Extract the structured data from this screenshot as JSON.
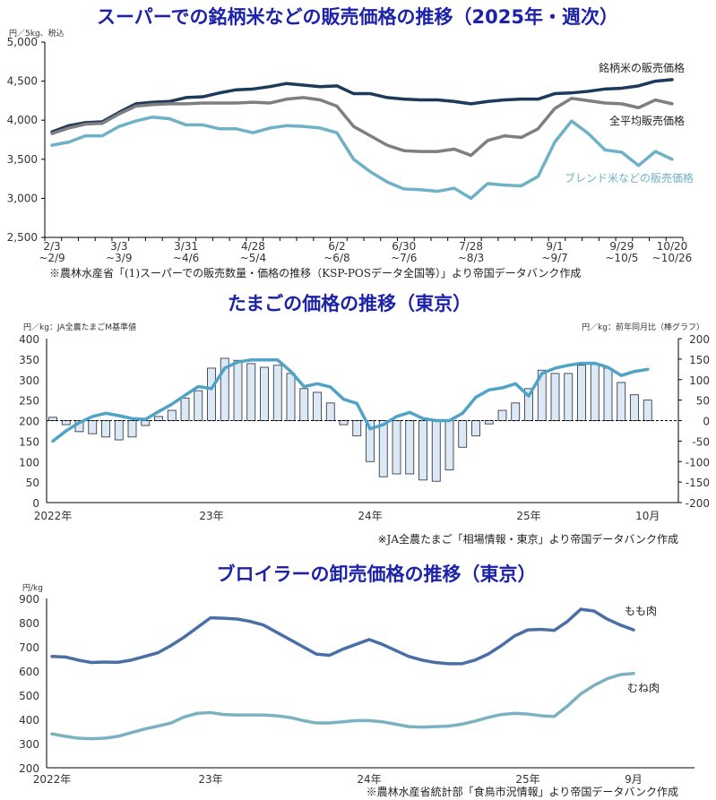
{
  "chart_data": [
    {
      "type": "line",
      "title": "スーパーでの銘柄米などの販売価格の推移（2025年・週次）",
      "ylabel": "円／5kg、税込",
      "ylim": [
        2500,
        5000
      ],
      "yticks": [
        "5,000",
        "4,500",
        "4,000",
        "3,500",
        "3,000",
        "2,500"
      ],
      "xtick_labels": [
        {
          "index": 0,
          "lines": [
            "2/3",
            "~2/9"
          ]
        },
        {
          "index": 4,
          "lines": [
            "3/3",
            "~3/9"
          ]
        },
        {
          "index": 8,
          "lines": [
            "3/31",
            "~4/6"
          ]
        },
        {
          "index": 12,
          "lines": [
            "4/28",
            "~5/4"
          ]
        },
        {
          "index": 17,
          "lines": [
            "6/2",
            "~6/8"
          ]
        },
        {
          "index": 21,
          "lines": [
            "6/30",
            "~7/6"
          ]
        },
        {
          "index": 25,
          "lines": [
            "7/28",
            "~8/3"
          ]
        },
        {
          "index": 30,
          "lines": [
            "9/1",
            "~9/7"
          ]
        },
        {
          "index": 34,
          "lines": [
            "9/29",
            "~10/5"
          ]
        },
        {
          "index": 37,
          "lines": [
            "10/20",
            "~10/26"
          ]
        }
      ],
      "weeks": 38,
      "series": [
        {
          "name": "銘柄米の販売価格",
          "color": "#1b3a5c",
          "values": [
            3850,
            3930,
            3970,
            3980,
            4100,
            4210,
            4230,
            4240,
            4290,
            4300,
            4350,
            4390,
            4400,
            4430,
            4470,
            4450,
            4430,
            4440,
            4340,
            4340,
            4290,
            4270,
            4260,
            4260,
            4240,
            4210,
            4240,
            4260,
            4270,
            4270,
            4340,
            4350,
            4370,
            4400,
            4410,
            4440,
            4500,
            4520
          ]
        },
        {
          "name": "全平均販売価格",
          "color": "#7f7f7f",
          "values": [
            3830,
            3900,
            3950,
            3960,
            4080,
            4180,
            4200,
            4210,
            4210,
            4220,
            4220,
            4220,
            4230,
            4220,
            4270,
            4290,
            4260,
            4180,
            3920,
            3800,
            3680,
            3610,
            3600,
            3600,
            3630,
            3550,
            3740,
            3800,
            3780,
            3890,
            4150,
            4280,
            4250,
            4220,
            4210,
            4160,
            4260,
            4210
          ]
        },
        {
          "name": "ブレンド米などの販売価格",
          "color": "#6fb1c6",
          "values": [
            3680,
            3720,
            3800,
            3800,
            3920,
            3990,
            4040,
            4020,
            3940,
            3940,
            3890,
            3890,
            3840,
            3900,
            3930,
            3920,
            3900,
            3840,
            3500,
            3340,
            3210,
            3120,
            3110,
            3090,
            3130,
            3000,
            3190,
            3170,
            3160,
            3280,
            3720,
            3990,
            3830,
            3620,
            3590,
            3420,
            3600,
            3500
          ]
        }
      ],
      "source": "※農林水産省「(1)スーパーでの販売数量・価格の推移（KSP-POSデータ全国等）」より帝国データバンク作成"
    },
    {
      "type": "bar+line",
      "title": "たまごの価格の推移（東京）",
      "ylabel_left": "円／kg：JA全農たまごM基準値",
      "ylabel_right": "円／kg：前年同月比（棒グラフ）",
      "ylim_left": [
        0,
        400
      ],
      "ylim_right": [
        -200,
        200
      ],
      "yticks_left": [
        "400",
        "350",
        "300",
        "250",
        "200",
        "150",
        "100",
        "50",
        "0"
      ],
      "yticks_right": [
        "200",
        "150",
        "100",
        "50",
        "0",
        "-50",
        "-100",
        "-150",
        "-200"
      ],
      "xtick_labels": [
        {
          "index": 0,
          "label": "2022年"
        },
        {
          "index": 12,
          "label": "23年"
        },
        {
          "index": 24,
          "label": "24年"
        },
        {
          "index": 36,
          "label": "25年"
        },
        {
          "index": 45,
          "label": "10月"
        }
      ],
      "line": {
        "color": "#4fa3c7",
        "values": [
          150,
          175,
          195,
          210,
          218,
          212,
          205,
          203,
          222,
          240,
          262,
          283,
          278,
          328,
          343,
          348,
          348,
          348,
          320,
          283,
          290,
          282,
          252,
          242,
          180,
          190,
          210,
          220,
          205,
          200,
          200,
          218,
          257,
          275,
          280,
          290,
          260,
          315,
          328,
          335,
          340,
          340,
          330,
          310,
          320,
          325
        ]
      },
      "bars": {
        "color": "#dce9f5",
        "values": [
          8,
          -10,
          -27,
          -32,
          -40,
          -47,
          -40,
          -12,
          10,
          25,
          55,
          73,
          128,
          152,
          147,
          139,
          130,
          135,
          115,
          78,
          69,
          43,
          -10,
          -37,
          -100,
          -137,
          -130,
          -130,
          -145,
          -148,
          -120,
          -65,
          -37,
          -8,
          25,
          43,
          78,
          123,
          115,
          115,
          135,
          137,
          128,
          93,
          63,
          50
        ]
      },
      "source": "※JA全農たまご「相場情報・東京」より帝国データバンク作成"
    },
    {
      "type": "line",
      "title": "ブロイラーの卸売価格の推移（東京）",
      "ylabel": "円/kg",
      "ylim": [
        200,
        900
      ],
      "yticks": [
        "900",
        "800",
        "700",
        "600",
        "500",
        "400",
        "300",
        "200"
      ],
      "xtick_labels": [
        {
          "index": 0,
          "label": "2022年"
        },
        {
          "index": 12,
          "label": "23年"
        },
        {
          "index": 24,
          "label": "24年"
        },
        {
          "index": 36,
          "label": "25年"
        },
        {
          "index": 44,
          "label": "9月"
        }
      ],
      "series": [
        {
          "name": "もも肉",
          "color": "#4a6ea6",
          "values": [
            660,
            658,
            645,
            635,
            637,
            636,
            645,
            660,
            675,
            705,
            740,
            780,
            820,
            818,
            815,
            805,
            790,
            760,
            730,
            700,
            670,
            665,
            690,
            710,
            730,
            710,
            685,
            660,
            645,
            635,
            630,
            630,
            645,
            670,
            705,
            745,
            770,
            772,
            768,
            805,
            855,
            848,
            815,
            790,
            770
          ]
        },
        {
          "name": "むね肉",
          "color": "#7ab2c2",
          "values": [
            340,
            330,
            322,
            320,
            322,
            330,
            345,
            360,
            372,
            385,
            410,
            425,
            428,
            420,
            418,
            418,
            418,
            415,
            408,
            395,
            385,
            385,
            390,
            395,
            395,
            390,
            380,
            370,
            368,
            370,
            372,
            380,
            393,
            408,
            420,
            425,
            422,
            415,
            412,
            455,
            505,
            540,
            568,
            585,
            590
          ]
        }
      ],
      "source": "※農林水産省統計部「食鳥市況情報」より帝国データバンク作成"
    }
  ]
}
